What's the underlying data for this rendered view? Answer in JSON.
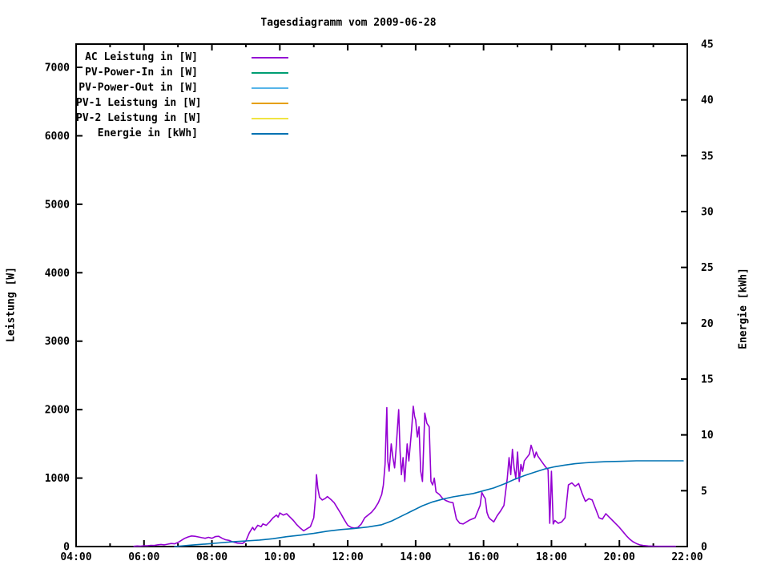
{
  "title": "Tagesdiagramm vom 2009-06-28",
  "colors": {
    "background": "#ffffff",
    "foreground": "#000000",
    "ac": "#9400d3",
    "pv_power_in": "#009e73",
    "pv_power_out": "#56b4e9",
    "pv1": "#e69f00",
    "pv2": "#f0e442",
    "energie": "#0072b2"
  },
  "legend": {
    "entries": [
      {
        "label": "AC Leistung in [W]",
        "color": "#9400d3"
      },
      {
        "label": "PV-Power-In in [W]",
        "color": "#009e73"
      },
      {
        "label": "PV-Power-Out in [W]",
        "color": "#56b4e9"
      },
      {
        "label": "PV-1 Leistung in [W]",
        "color": "#e69f00"
      },
      {
        "label": "PV-2 Leistung in [W]",
        "color": "#f0e442"
      },
      {
        "label": "Energie in [kWh]",
        "color": "#0072b2"
      }
    ]
  },
  "chart_data": {
    "type": "line",
    "title": "Tagesdiagramm vom 2009-06-28",
    "grid": false,
    "legend_position": "top-left-inside",
    "x_axis": {
      "tick_labels": [
        "04:00",
        "06:00",
        "08:00",
        "10:00",
        "12:00",
        "14:00",
        "16:00",
        "18:00",
        "20:00",
        "22:00"
      ],
      "major_tick_hours": [
        4,
        6,
        8,
        10,
        12,
        14,
        16,
        18,
        20,
        22
      ],
      "minor_tick_hours": [
        5,
        7,
        9,
        11,
        13,
        15,
        17,
        19,
        21
      ],
      "range_hours": [
        4,
        22
      ]
    },
    "y_left": {
      "label": "Leistung [W]",
      "tick_values": [
        0,
        1000,
        2000,
        3000,
        4000,
        5000,
        6000,
        7000
      ],
      "range": [
        0,
        7340
      ]
    },
    "y_right": {
      "label": "Energie [kWh]",
      "tick_values": [
        0,
        5,
        10,
        15,
        20,
        25,
        30,
        35,
        40,
        45
      ],
      "range": [
        0,
        45
      ]
    },
    "series": [
      {
        "name": "AC Leistung in [W]",
        "color": "#9400d3",
        "axis": "left",
        "points": [
          [
            5.7,
            3
          ],
          [
            5.8,
            8
          ],
          [
            5.9,
            6
          ],
          [
            6.0,
            12
          ],
          [
            6.1,
            10
          ],
          [
            6.2,
            18
          ],
          [
            6.3,
            15
          ],
          [
            6.4,
            25
          ],
          [
            6.5,
            30
          ],
          [
            6.6,
            25
          ],
          [
            6.7,
            35
          ],
          [
            6.8,
            45
          ],
          [
            6.9,
            40
          ],
          [
            7.0,
            60
          ],
          [
            7.1,
            90
          ],
          [
            7.2,
            120
          ],
          [
            7.3,
            140
          ],
          [
            7.4,
            155
          ],
          [
            7.5,
            150
          ],
          [
            7.6,
            140
          ],
          [
            7.7,
            130
          ],
          [
            7.8,
            120
          ],
          [
            7.9,
            135
          ],
          [
            8.0,
            120
          ],
          [
            8.1,
            145
          ],
          [
            8.2,
            150
          ],
          [
            8.3,
            120
          ],
          [
            8.4,
            100
          ],
          [
            8.5,
            90
          ],
          [
            8.6,
            70
          ],
          [
            8.75,
            50
          ],
          [
            8.9,
            45
          ],
          [
            9.0,
            80
          ],
          [
            9.1,
            200
          ],
          [
            9.2,
            280
          ],
          [
            9.25,
            240
          ],
          [
            9.35,
            310
          ],
          [
            9.45,
            290
          ],
          [
            9.5,
            330
          ],
          [
            9.6,
            310
          ],
          [
            9.7,
            360
          ],
          [
            9.8,
            420
          ],
          [
            9.9,
            460
          ],
          [
            9.95,
            430
          ],
          [
            10.0,
            490
          ],
          [
            10.1,
            460
          ],
          [
            10.2,
            480
          ],
          [
            10.3,
            430
          ],
          [
            10.4,
            380
          ],
          [
            10.5,
            320
          ],
          [
            10.6,
            270
          ],
          [
            10.7,
            230
          ],
          [
            10.8,
            260
          ],
          [
            10.9,
            290
          ],
          [
            11.0,
            420
          ],
          [
            11.05,
            700
          ],
          [
            11.08,
            1050
          ],
          [
            11.12,
            850
          ],
          [
            11.17,
            720
          ],
          [
            11.25,
            680
          ],
          [
            11.33,
            700
          ],
          [
            11.4,
            730
          ],
          [
            11.5,
            690
          ],
          [
            11.6,
            640
          ],
          [
            11.7,
            560
          ],
          [
            11.8,
            480
          ],
          [
            11.9,
            390
          ],
          [
            12.0,
            310
          ],
          [
            12.1,
            280
          ],
          [
            12.2,
            270
          ],
          [
            12.3,
            280
          ],
          [
            12.4,
            330
          ],
          [
            12.5,
            420
          ],
          [
            12.6,
            460
          ],
          [
            12.7,
            500
          ],
          [
            12.8,
            560
          ],
          [
            12.9,
            640
          ],
          [
            13.0,
            760
          ],
          [
            13.05,
            900
          ],
          [
            13.1,
            1200
          ],
          [
            13.15,
            2030
          ],
          [
            13.18,
            1250
          ],
          [
            13.22,
            1100
          ],
          [
            13.28,
            1500
          ],
          [
            13.33,
            1300
          ],
          [
            13.38,
            1150
          ],
          [
            13.42,
            1400
          ],
          [
            13.5,
            2000
          ],
          [
            13.54,
            1400
          ],
          [
            13.58,
            1050
          ],
          [
            13.63,
            1300
          ],
          [
            13.68,
            950
          ],
          [
            13.75,
            1500
          ],
          [
            13.8,
            1250
          ],
          [
            13.88,
            1700
          ],
          [
            13.93,
            2050
          ],
          [
            13.97,
            1900
          ],
          [
            14.0,
            1850
          ],
          [
            14.05,
            1600
          ],
          [
            14.1,
            1750
          ],
          [
            14.15,
            1100
          ],
          [
            14.2,
            950
          ],
          [
            14.27,
            1950
          ],
          [
            14.33,
            1800
          ],
          [
            14.4,
            1750
          ],
          [
            14.45,
            950
          ],
          [
            14.5,
            900
          ],
          [
            14.55,
            1000
          ],
          [
            14.6,
            800
          ],
          [
            14.7,
            760
          ],
          [
            14.8,
            700
          ],
          [
            14.9,
            670
          ],
          [
            15.0,
            650
          ],
          [
            15.1,
            640
          ],
          [
            15.2,
            400
          ],
          [
            15.3,
            340
          ],
          [
            15.4,
            330
          ],
          [
            15.5,
            360
          ],
          [
            15.6,
            390
          ],
          [
            15.75,
            420
          ],
          [
            15.9,
            600
          ],
          [
            15.95,
            790
          ],
          [
            16.0,
            740
          ],
          [
            16.05,
            700
          ],
          [
            16.1,
            500
          ],
          [
            16.15,
            430
          ],
          [
            16.2,
            400
          ],
          [
            16.3,
            360
          ],
          [
            16.4,
            450
          ],
          [
            16.5,
            520
          ],
          [
            16.6,
            600
          ],
          [
            16.65,
            800
          ],
          [
            16.7,
            1000
          ],
          [
            16.75,
            1300
          ],
          [
            16.8,
            1050
          ],
          [
            16.85,
            1420
          ],
          [
            16.9,
            1150
          ],
          [
            16.95,
            1000
          ],
          [
            17.0,
            1380
          ],
          [
            17.05,
            950
          ],
          [
            17.1,
            1200
          ],
          [
            17.15,
            1100
          ],
          [
            17.2,
            1250
          ],
          [
            17.35,
            1350
          ],
          [
            17.4,
            1480
          ],
          [
            17.45,
            1400
          ],
          [
            17.5,
            1300
          ],
          [
            17.55,
            1380
          ],
          [
            17.6,
            1320
          ],
          [
            17.7,
            1250
          ],
          [
            17.8,
            1180
          ],
          [
            17.9,
            1120
          ],
          [
            17.95,
            340
          ],
          [
            18.0,
            1100
          ],
          [
            18.05,
            330
          ],
          [
            18.1,
            380
          ],
          [
            18.2,
            340
          ],
          [
            18.3,
            360
          ],
          [
            18.4,
            420
          ],
          [
            18.5,
            900
          ],
          [
            18.6,
            930
          ],
          [
            18.7,
            880
          ],
          [
            18.8,
            920
          ],
          [
            18.9,
            780
          ],
          [
            19.0,
            660
          ],
          [
            19.1,
            700
          ],
          [
            19.2,
            680
          ],
          [
            19.3,
            550
          ],
          [
            19.4,
            420
          ],
          [
            19.5,
            400
          ],
          [
            19.6,
            480
          ],
          [
            19.7,
            430
          ],
          [
            19.8,
            380
          ],
          [
            19.9,
            330
          ],
          [
            20.0,
            280
          ],
          [
            20.1,
            220
          ],
          [
            20.2,
            160
          ],
          [
            20.3,
            110
          ],
          [
            20.4,
            70
          ],
          [
            20.5,
            45
          ],
          [
            20.6,
            25
          ],
          [
            20.7,
            15
          ],
          [
            20.85,
            8
          ],
          [
            21.0,
            5
          ],
          [
            21.2,
            4
          ],
          [
            21.4,
            3
          ],
          [
            21.65,
            3
          ]
        ]
      },
      {
        "name": "Energie in [kWh]",
        "color": "#0072b2",
        "axis": "right",
        "points": [
          [
            6.9,
            0.0
          ],
          [
            7.1,
            0.05
          ],
          [
            7.4,
            0.13
          ],
          [
            7.8,
            0.22
          ],
          [
            8.2,
            0.32
          ],
          [
            8.6,
            0.42
          ],
          [
            9.0,
            0.5
          ],
          [
            9.4,
            0.58
          ],
          [
            9.8,
            0.7
          ],
          [
            10.2,
            0.88
          ],
          [
            10.6,
            1.02
          ],
          [
            11.0,
            1.18
          ],
          [
            11.4,
            1.38
          ],
          [
            11.8,
            1.52
          ],
          [
            12.2,
            1.62
          ],
          [
            12.6,
            1.75
          ],
          [
            13.0,
            1.95
          ],
          [
            13.3,
            2.3
          ],
          [
            13.6,
            2.75
          ],
          [
            13.9,
            3.2
          ],
          [
            14.2,
            3.65
          ],
          [
            14.5,
            4.0
          ],
          [
            14.8,
            4.25
          ],
          [
            15.1,
            4.45
          ],
          [
            15.4,
            4.6
          ],
          [
            15.7,
            4.75
          ],
          [
            16.0,
            5.0
          ],
          [
            16.3,
            5.25
          ],
          [
            16.6,
            5.6
          ],
          [
            16.9,
            6.0
          ],
          [
            17.2,
            6.35
          ],
          [
            17.5,
            6.65
          ],
          [
            17.8,
            6.95
          ],
          [
            18.1,
            7.15
          ],
          [
            18.4,
            7.3
          ],
          [
            18.7,
            7.42
          ],
          [
            19.0,
            7.5
          ],
          [
            19.3,
            7.56
          ],
          [
            19.6,
            7.6
          ],
          [
            20.0,
            7.63
          ],
          [
            20.5,
            7.68
          ],
          [
            21.0,
            7.68
          ],
          [
            21.45,
            7.68
          ],
          [
            21.88,
            7.68
          ]
        ]
      }
    ]
  },
  "axis_labels": {
    "left": "Leistung [W]",
    "right": "Energie [kWh]"
  }
}
